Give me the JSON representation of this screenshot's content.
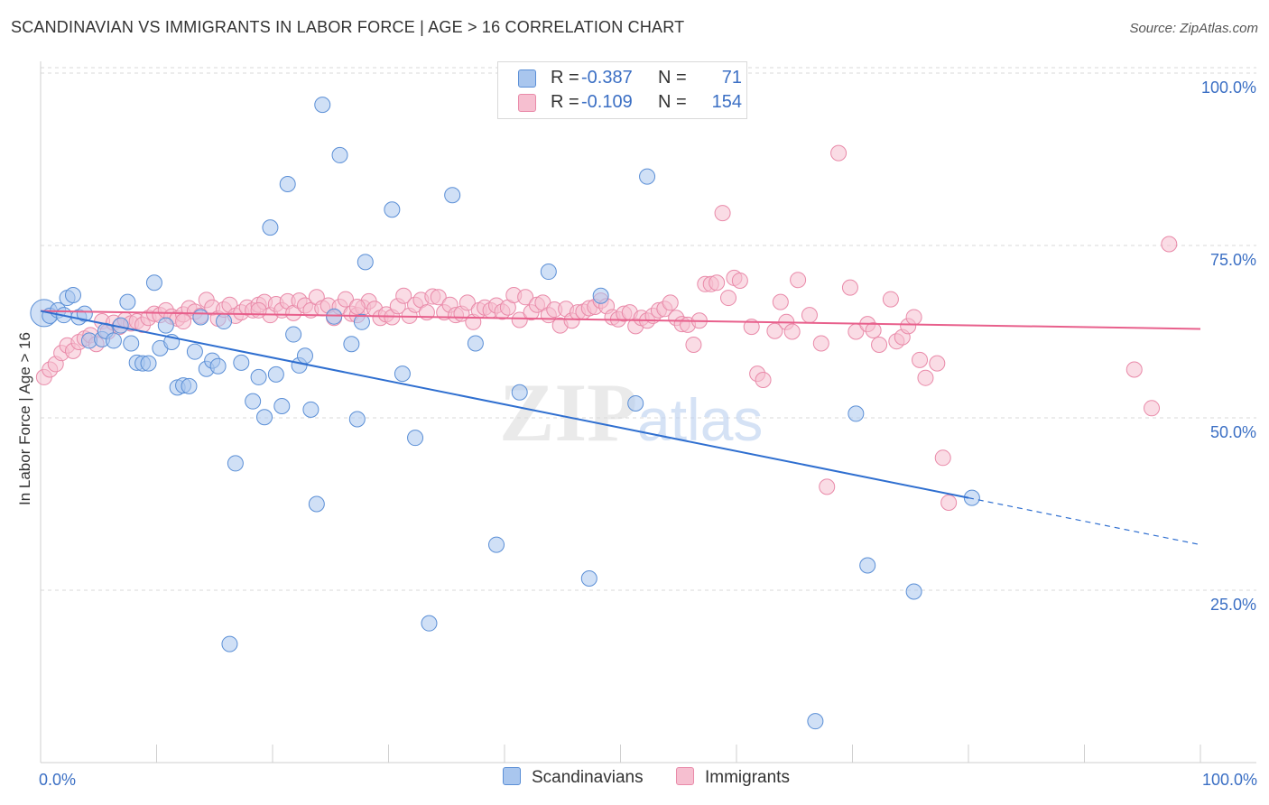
{
  "header": {
    "title": "SCANDINAVIAN VS IMMIGRANTS IN LABOR FORCE | AGE > 16 CORRELATION CHART",
    "source": "Source: ZipAtlas.com"
  },
  "watermark": {
    "zip": "ZIP",
    "atlas": "atlas"
  },
  "legend": {
    "rows": [
      {
        "r_label": "R =",
        "r_value": "-0.387",
        "n_label": "N =",
        "n_value": "71"
      },
      {
        "r_label": "R =",
        "r_value": "-0.109",
        "n_label": "N =",
        "n_value": "154"
      }
    ]
  },
  "colors": {
    "blue_fill": "#a9c6ee",
    "blue_stroke": "#5b8fd6",
    "blue_line": "#2f6fd0",
    "pink_fill": "#f6bfd0",
    "pink_stroke": "#e98aa9",
    "pink_line": "#e8608c",
    "axis_text": "#3b6fc4",
    "grid": "#d9d9d9"
  },
  "chart_data": {
    "type": "scatter",
    "title": "SCANDINAVIAN VS IMMIGRANTS IN LABOR FORCE | AGE > 16 CORRELATION CHART",
    "xlabel": "",
    "ylabel": "In Labor Force | Age > 16",
    "xlim": [
      0,
      100
    ],
    "ylim": [
      0,
      105
    ],
    "x_tick_labels": [
      "0.0%",
      "100.0%"
    ],
    "y_tick_labels": [
      "25.0%",
      "50.0%",
      "75.0%",
      "100.0%"
    ],
    "y_ticks": [
      25,
      50,
      75,
      100
    ],
    "grid": true,
    "legend_position": "bottom",
    "series": [
      {
        "name": "Scandinavians",
        "r": -0.387,
        "n": 71,
        "trend": {
          "x": [
            0,
            80
          ],
          "y": [
            65.5,
            38.4
          ]
        },
        "trend_extension": {
          "x": [
            80,
            100
          ],
          "y": [
            38.4,
            31.6
          ]
        },
        "points": [
          [
            0.3,
            65.2
          ],
          [
            0.8,
            64.8
          ],
          [
            1.5,
            65.6
          ],
          [
            2.0,
            64.9
          ],
          [
            2.3,
            67.4
          ],
          [
            2.8,
            67.8
          ],
          [
            3.3,
            64.6
          ],
          [
            3.8,
            65.1
          ],
          [
            4.2,
            61.2
          ],
          [
            5.3,
            61.4
          ],
          [
            5.6,
            62.6
          ],
          [
            6.3,
            61.2
          ],
          [
            6.9,
            63.4
          ],
          [
            7.5,
            66.8
          ],
          [
            7.8,
            60.8
          ],
          [
            8.3,
            58.0
          ],
          [
            8.8,
            57.9
          ],
          [
            9.3,
            57.9
          ],
          [
            9.8,
            69.6
          ],
          [
            10.3,
            60.1
          ],
          [
            10.8,
            63.4
          ],
          [
            11.3,
            61.0
          ],
          [
            11.8,
            54.4
          ],
          [
            12.3,
            54.7
          ],
          [
            12.8,
            54.6
          ],
          [
            13.3,
            59.6
          ],
          [
            13.8,
            64.6
          ],
          [
            14.3,
            57.1
          ],
          [
            14.8,
            58.3
          ],
          [
            15.3,
            57.5
          ],
          [
            15.8,
            64.0
          ],
          [
            16.3,
            17.2
          ],
          [
            16.8,
            43.4
          ],
          [
            17.3,
            58.0
          ],
          [
            18.3,
            52.4
          ],
          [
            18.8,
            55.9
          ],
          [
            19.3,
            50.1
          ],
          [
            19.8,
            77.6
          ],
          [
            20.3,
            56.3
          ],
          [
            20.8,
            51.7
          ],
          [
            21.3,
            83.9
          ],
          [
            21.8,
            62.1
          ],
          [
            22.3,
            57.6
          ],
          [
            22.8,
            59.0
          ],
          [
            23.3,
            51.2
          ],
          [
            23.8,
            37.5
          ],
          [
            24.3,
            95.4
          ],
          [
            25.3,
            64.7
          ],
          [
            25.8,
            88.1
          ],
          [
            26.8,
            60.7
          ],
          [
            27.3,
            49.8
          ],
          [
            27.7,
            63.9
          ],
          [
            28.0,
            72.6
          ],
          [
            30.3,
            80.2
          ],
          [
            31.2,
            56.4
          ],
          [
            32.3,
            47.1
          ],
          [
            33.5,
            20.2
          ],
          [
            35.5,
            82.3
          ],
          [
            37.5,
            60.8
          ],
          [
            39.3,
            31.6
          ],
          [
            41.3,
            53.7
          ],
          [
            43.8,
            71.2
          ],
          [
            47.3,
            26.7
          ],
          [
            48.3,
            67.7
          ],
          [
            51.3,
            52.1
          ],
          [
            52.3,
            85.0
          ],
          [
            66.8,
            6.0
          ],
          [
            70.3,
            50.6
          ],
          [
            71.3,
            28.6
          ],
          [
            75.3,
            24.8
          ],
          [
            80.3,
            38.4
          ]
        ]
      },
      {
        "name": "Immigrants",
        "r": -0.109,
        "n": 154,
        "trend": {
          "x": [
            0,
            100
          ],
          "y": [
            65.5,
            62.9
          ]
        },
        "points": [
          [
            0.3,
            55.9
          ],
          [
            0.8,
            57.0
          ],
          [
            1.3,
            57.8
          ],
          [
            1.8,
            59.4
          ],
          [
            2.3,
            60.5
          ],
          [
            2.8,
            59.7
          ],
          [
            3.3,
            61.0
          ],
          [
            3.8,
            61.5
          ],
          [
            4.3,
            62.0
          ],
          [
            4.8,
            60.7
          ],
          [
            5.3,
            64.0
          ],
          [
            5.8,
            62.5
          ],
          [
            6.3,
            63.8
          ],
          [
            6.8,
            63.2
          ],
          [
            7.3,
            64.2
          ],
          [
            7.8,
            63.7
          ],
          [
            8.3,
            64.0
          ],
          [
            8.8,
            63.5
          ],
          [
            9.3,
            64.5
          ],
          [
            9.8,
            65.1
          ],
          [
            10.3,
            64.9
          ],
          [
            10.8,
            65.6
          ],
          [
            11.3,
            64.7
          ],
          [
            11.8,
            64.4
          ],
          [
            12.3,
            65.0
          ],
          [
            12.8,
            65.9
          ],
          [
            13.3,
            65.4
          ],
          [
            13.8,
            64.8
          ],
          [
            14.3,
            67.1
          ],
          [
            14.8,
            66.0
          ],
          [
            15.3,
            64.4
          ],
          [
            15.8,
            65.7
          ],
          [
            16.3,
            66.4
          ],
          [
            16.8,
            64.8
          ],
          [
            17.3,
            65.3
          ],
          [
            17.8,
            66.0
          ],
          [
            18.3,
            65.6
          ],
          [
            18.8,
            66.4
          ],
          [
            19.3,
            66.8
          ],
          [
            19.8,
            64.9
          ],
          [
            20.3,
            66.5
          ],
          [
            20.8,
            65.6
          ],
          [
            21.3,
            66.9
          ],
          [
            21.8,
            65.2
          ],
          [
            22.3,
            67.0
          ],
          [
            22.8,
            66.3
          ],
          [
            23.3,
            65.6
          ],
          [
            23.8,
            67.5
          ],
          [
            24.3,
            65.9
          ],
          [
            24.8,
            66.3
          ],
          [
            25.3,
            64.5
          ],
          [
            25.8,
            66.1
          ],
          [
            26.3,
            67.2
          ],
          [
            26.8,
            65.1
          ],
          [
            27.3,
            64.9
          ],
          [
            27.8,
            66.0
          ],
          [
            28.3,
            66.9
          ],
          [
            28.8,
            65.8
          ],
          [
            29.3,
            64.5
          ],
          [
            29.8,
            65.0
          ],
          [
            30.3,
            64.6
          ],
          [
            30.8,
            66.2
          ],
          [
            31.3,
            67.7
          ],
          [
            31.8,
            64.8
          ],
          [
            32.3,
            66.4
          ],
          [
            32.8,
            67.1
          ],
          [
            33.3,
            65.3
          ],
          [
            33.8,
            67.6
          ],
          [
            34.3,
            67.5
          ],
          [
            34.8,
            65.3
          ],
          [
            35.3,
            66.4
          ],
          [
            35.8,
            64.9
          ],
          [
            36.3,
            65.1
          ],
          [
            36.8,
            66.7
          ],
          [
            37.3,
            63.9
          ],
          [
            37.8,
            65.6
          ],
          [
            38.3,
            66.0
          ],
          [
            38.8,
            65.6
          ],
          [
            39.3,
            66.3
          ],
          [
            39.8,
            65.4
          ],
          [
            40.3,
            66.0
          ],
          [
            40.8,
            67.8
          ],
          [
            41.3,
            64.2
          ],
          [
            41.8,
            67.5
          ],
          [
            42.3,
            65.3
          ],
          [
            42.8,
            66.4
          ],
          [
            43.3,
            66.7
          ],
          [
            43.8,
            64.9
          ],
          [
            44.3,
            65.7
          ],
          [
            44.8,
            63.4
          ],
          [
            45.3,
            65.8
          ],
          [
            45.8,
            64.1
          ],
          [
            46.3,
            65.3
          ],
          [
            46.8,
            65.4
          ],
          [
            47.3,
            65.9
          ],
          [
            47.8,
            66.1
          ],
          [
            48.3,
            67.0
          ],
          [
            48.8,
            66.2
          ],
          [
            49.3,
            64.6
          ],
          [
            49.8,
            64.3
          ],
          [
            50.3,
            65.1
          ],
          [
            50.8,
            65.3
          ],
          [
            51.3,
            63.3
          ],
          [
            51.8,
            64.5
          ],
          [
            52.3,
            64.1
          ],
          [
            52.8,
            64.8
          ],
          [
            53.3,
            65.6
          ],
          [
            53.8,
            65.8
          ],
          [
            54.3,
            66.7
          ],
          [
            54.8,
            64.5
          ],
          [
            55.3,
            63.6
          ],
          [
            55.8,
            63.5
          ],
          [
            56.3,
            60.6
          ],
          [
            56.8,
            64.1
          ],
          [
            57.3,
            69.4
          ],
          [
            57.8,
            69.4
          ],
          [
            58.3,
            69.6
          ],
          [
            58.8,
            79.7
          ],
          [
            59.3,
            67.4
          ],
          [
            59.8,
            70.3
          ],
          [
            60.3,
            69.9
          ],
          [
            61.3,
            63.2
          ],
          [
            61.8,
            56.4
          ],
          [
            62.3,
            55.5
          ],
          [
            63.3,
            62.6
          ],
          [
            63.8,
            66.8
          ],
          [
            64.3,
            63.9
          ],
          [
            64.8,
            62.5
          ],
          [
            65.3,
            70.0
          ],
          [
            66.3,
            64.9
          ],
          [
            67.3,
            60.8
          ],
          [
            67.8,
            40.0
          ],
          [
            68.8,
            88.4
          ],
          [
            69.8,
            68.9
          ],
          [
            70.3,
            62.5
          ],
          [
            71.3,
            63.6
          ],
          [
            71.8,
            62.7
          ],
          [
            72.3,
            60.6
          ],
          [
            73.3,
            67.2
          ],
          [
            73.8,
            61.1
          ],
          [
            74.3,
            61.7
          ],
          [
            74.8,
            63.3
          ],
          [
            75.3,
            64.6
          ],
          [
            75.8,
            58.4
          ],
          [
            76.3,
            55.8
          ],
          [
            77.3,
            57.9
          ],
          [
            77.8,
            44.2
          ],
          [
            78.3,
            37.7
          ],
          [
            94.3,
            57.0
          ],
          [
            95.8,
            51.4
          ],
          [
            97.3,
            75.2
          ],
          [
            27.3,
            66.1
          ],
          [
            18.8,
            65.6
          ],
          [
            12.3,
            64.0
          ]
        ]
      }
    ]
  }
}
